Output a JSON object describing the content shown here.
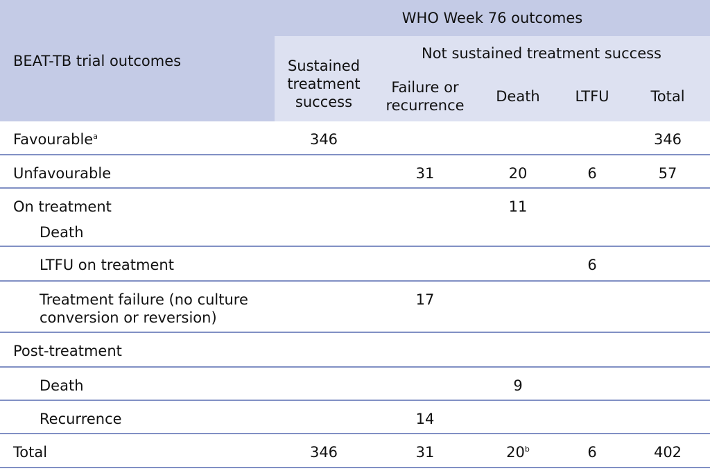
{
  "header": {
    "row_group_label": "BEAT-TB trial outcomes",
    "who_title": "WHO Week 76 outcomes",
    "sustained_line1": "Sustained",
    "sustained_line2": "treatment",
    "sustained_line3": "success",
    "not_sustained": "Not sustained treatment success",
    "failure_line1": "Failure or",
    "failure_line2": "recurrence",
    "death": "Death",
    "ltfu": "LTFU",
    "total": "Total"
  },
  "rows": {
    "favourable": {
      "label": "Favourable",
      "sup": "a",
      "sustained": "346",
      "total": "346"
    },
    "unfavourable": {
      "label": "Unfavourable",
      "failure": "31",
      "death": "20",
      "ltfu": "6",
      "total": "57"
    },
    "on_treatment": {
      "label": "On treatment",
      "sub_label": "Death",
      "death": "11"
    },
    "ltfu_on_treatment": {
      "label": "LTFU on treatment",
      "ltfu": "6"
    },
    "treatment_failure": {
      "label_line1": "Treatment failure (no culture",
      "label_line2": "conversion or reversion)",
      "failure": "17"
    },
    "post_treatment": {
      "label": "Post-treatment"
    },
    "post_death": {
      "label": "Death",
      "death": "9"
    },
    "recurrence": {
      "label": "Recurrence",
      "failure": "14"
    },
    "total": {
      "label": "Total",
      "sustained": "346",
      "failure": "31",
      "death": "20",
      "death_sup": "b",
      "ltfu": "6",
      "total": "402"
    }
  },
  "colors": {
    "header_dark": "#c4cbe6",
    "header_light": "#dde1f1",
    "rule": "#8190c4"
  }
}
